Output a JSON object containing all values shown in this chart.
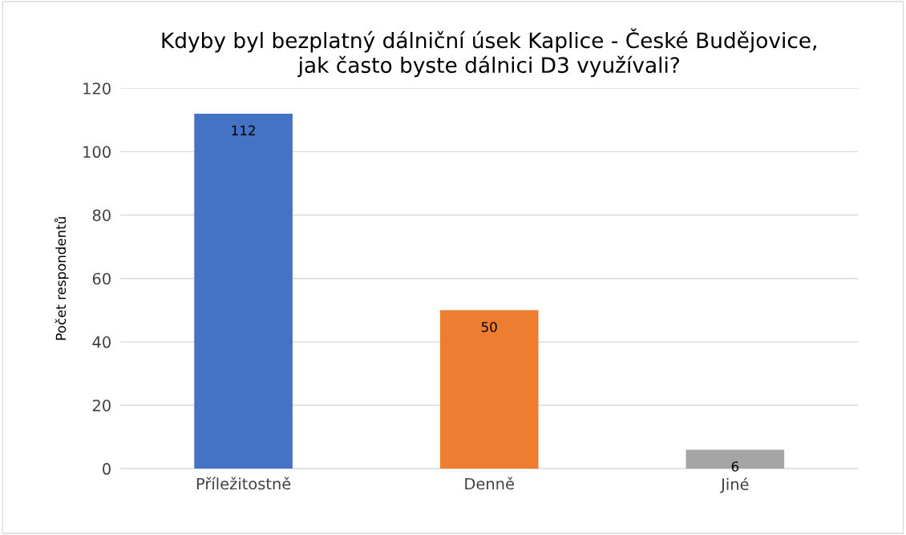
{
  "chart_data": {
    "type": "bar",
    "title": "Kdyby byl bezplatný dálniční úsek Kaplice - České Budějovice,\njak často byste dálnici D3 využívali?",
    "ylabel": "Počet respondentů",
    "categories": [
      "Příležitostně",
      "Denně",
      "Jiné"
    ],
    "values": [
      112,
      50,
      6
    ],
    "colors": [
      "#4472c4",
      "#ed7d31",
      "#a5a5a5"
    ],
    "ylim": [
      0,
      120
    ],
    "yticks": [
      0,
      20,
      40,
      60,
      80,
      100,
      120
    ],
    "grid": "y",
    "data_labels": true
  }
}
